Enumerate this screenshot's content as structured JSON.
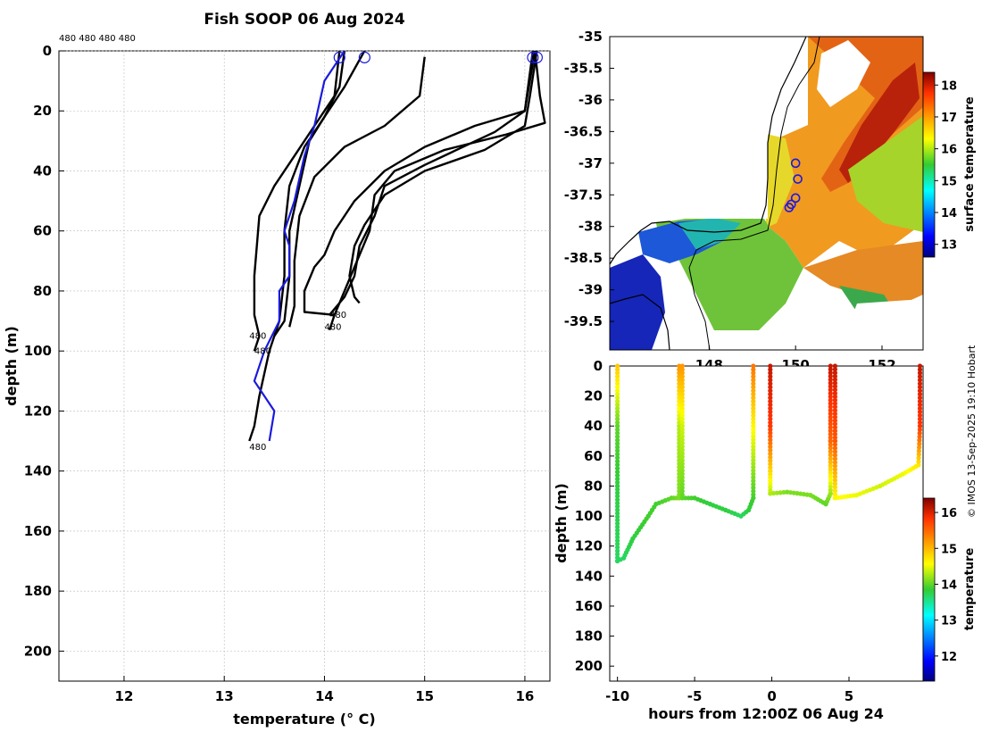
{
  "title": "Fish SOOP 06 Aug 2024",
  "float_ids": "480 480 480 480",
  "watermark": "© IMOS 13-Sep-2025 19:10 Hobart",
  "chart_data": [
    {
      "id": "profiles",
      "type": "line",
      "xlabel": "temperature (° C)",
      "ylabel": "depth (m)",
      "xlim": [
        11.35,
        16.25
      ],
      "ylim": [
        210,
        0
      ],
      "xticks": [
        "12",
        "13",
        "14",
        "15",
        "16"
      ],
      "yticks": [
        "0",
        "20",
        "40",
        "60",
        "80",
        "100",
        "120",
        "140",
        "160",
        "180",
        "200"
      ],
      "grid": true,
      "series": [
        {
          "name": "profile-1",
          "color": "#000000",
          "points": [
            [
              14.15,
              0
            ],
            [
              14.1,
              15
            ],
            [
              13.9,
              25
            ],
            [
              13.7,
              35
            ],
            [
              13.5,
              45
            ],
            [
              13.35,
              55
            ],
            [
              13.3,
              75
            ],
            [
              13.3,
              88
            ],
            [
              13.35,
              95
            ],
            [
              13.3,
              100
            ]
          ]
        },
        {
          "name": "profile-2",
          "color": "#000000",
          "points": [
            [
              14.2,
              0
            ],
            [
              14.15,
              12
            ],
            [
              14.0,
              22
            ],
            [
              13.8,
              32
            ],
            [
              13.65,
              45
            ],
            [
              13.6,
              60
            ],
            [
              13.6,
              75
            ],
            [
              13.55,
              90
            ],
            [
              13.45,
              100
            ],
            [
              13.35,
              115
            ],
            [
              13.3,
              125
            ],
            [
              13.25,
              130
            ]
          ]
        },
        {
          "name": "profile-3",
          "color": "#000000",
          "points": [
            [
              14.4,
              0
            ],
            [
              14.2,
              12
            ],
            [
              14.0,
              22
            ],
            [
              13.85,
              30
            ],
            [
              13.75,
              45
            ],
            [
              13.65,
              60
            ],
            [
              13.65,
              75
            ],
            [
              13.6,
              90
            ],
            [
              13.5,
              95
            ]
          ]
        },
        {
          "name": "profile-4",
          "color": "#000000",
          "points": [
            [
              15.0,
              2
            ],
            [
              14.95,
              15
            ],
            [
              14.6,
              25
            ],
            [
              14.2,
              32
            ],
            [
              13.9,
              42
            ],
            [
              13.75,
              55
            ],
            [
              13.7,
              70
            ],
            [
              13.7,
              85
            ],
            [
              13.65,
              92
            ]
          ]
        },
        {
          "name": "profile-5",
          "color": "#000000",
          "points": [
            [
              16.1,
              0
            ],
            [
              16.0,
              20
            ],
            [
              15.5,
              25
            ],
            [
              15.0,
              32
            ],
            [
              14.6,
              40
            ],
            [
              14.3,
              50
            ],
            [
              14.1,
              60
            ],
            [
              14.0,
              68
            ],
            [
              13.9,
              72
            ],
            [
              13.8,
              80
            ],
            [
              13.8,
              87
            ],
            [
              14.1,
              88
            ]
          ]
        },
        {
          "name": "profile-6",
          "color": "#000000",
          "points": [
            [
              16.12,
              0
            ],
            [
              16.05,
              15
            ],
            [
              16.0,
              25
            ],
            [
              15.6,
              33
            ],
            [
              15.0,
              40
            ],
            [
              14.6,
              48
            ],
            [
              14.4,
              58
            ],
            [
              14.3,
              65
            ],
            [
              14.25,
              75
            ],
            [
              14.3,
              82
            ],
            [
              14.35,
              84
            ]
          ]
        },
        {
          "name": "profile-7",
          "color": "#000000",
          "points": [
            [
              16.1,
              0
            ],
            [
              16.15,
              15
            ],
            [
              16.2,
              24
            ],
            [
              15.8,
              28
            ],
            [
              15.2,
              33
            ],
            [
              14.7,
              40
            ],
            [
              14.5,
              48
            ],
            [
              14.45,
              60
            ],
            [
              14.3,
              72
            ],
            [
              14.2,
              80
            ],
            [
              14.1,
              88
            ],
            [
              14.05,
              93
            ]
          ]
        },
        {
          "name": "profile-8",
          "color": "#000000",
          "points": [
            [
              16.08,
              0
            ],
            [
              16.0,
              20
            ],
            [
              15.7,
              27
            ],
            [
              15.0,
              38
            ],
            [
              14.6,
              45
            ],
            [
              14.5,
              55
            ],
            [
              14.35,
              65
            ],
            [
              14.3,
              75
            ],
            [
              14.2,
              82
            ],
            [
              14.05,
              88
            ]
          ]
        },
        {
          "name": "mean",
          "color": "#1a1adc",
          "points": [
            [
              14.2,
              0
            ],
            [
              14.0,
              10
            ],
            [
              13.9,
              25
            ],
            [
              13.8,
              35
            ],
            [
              13.7,
              50
            ],
            [
              13.6,
              60
            ],
            [
              13.65,
              65
            ],
            [
              13.65,
              75
            ],
            [
              13.55,
              80
            ],
            [
              13.55,
              90
            ],
            [
              13.4,
              100
            ],
            [
              13.3,
              110
            ],
            [
              13.5,
              120
            ],
            [
              13.45,
              130
            ]
          ]
        }
      ],
      "labels": [
        {
          "text": "480",
          "x": 14.05,
          "y": 89
        },
        {
          "text": "480",
          "x": 14.0,
          "y": 93
        },
        {
          "text": "480",
          "x": 13.25,
          "y": 96
        },
        {
          "text": "480",
          "x": 13.3,
          "y": 101
        },
        {
          "text": "480",
          "x": 13.25,
          "y": 133
        }
      ],
      "markers": [
        [
          14.15,
          1
        ],
        [
          14.4,
          1
        ],
        [
          16.08,
          1
        ],
        [
          16.12,
          1
        ]
      ]
    },
    {
      "id": "map",
      "type": "heatmap",
      "xticks": [
        "148",
        "150",
        "152"
      ],
      "yticks": [
        "-35",
        "-35.5",
        "-36",
        "-36.5",
        "-37",
        "-37.5",
        "-38",
        "-38.5",
        "-39",
        "-39.5"
      ],
      "xlim": [
        145.7,
        152.95
      ],
      "ylim": [
        -39.95,
        -35.0
      ],
      "colorbar_label": "surface temperature",
      "colorbar_ticks": [
        "13",
        "14",
        "15",
        "16",
        "17",
        "18"
      ],
      "colorbar_range": [
        12.6,
        18.4
      ],
      "stations": [
        [
          150.0,
          -37.0
        ],
        [
          150.05,
          -37.25
        ],
        [
          150.0,
          -37.55
        ],
        [
          149.9,
          -37.65
        ],
        [
          149.85,
          -37.7
        ]
      ]
    },
    {
      "id": "timeseries",
      "type": "scatter",
      "xlabel": "hours from 12:00Z 06 Aug 24",
      "ylabel": "depth (m)",
      "xlim": [
        -10.5,
        9.8
      ],
      "ylim": [
        210,
        0
      ],
      "xticks": [
        "-10",
        "-5",
        "0",
        "5"
      ],
      "yticks": [
        "0",
        "20",
        "40",
        "60",
        "80",
        "100",
        "120",
        "140",
        "160",
        "180",
        "200"
      ],
      "colorbar_label": "temperature",
      "colorbar_ticks": [
        "12",
        "13",
        "14",
        "15",
        "16"
      ],
      "colorbar_range": [
        11.3,
        16.4
      ]
    }
  ]
}
